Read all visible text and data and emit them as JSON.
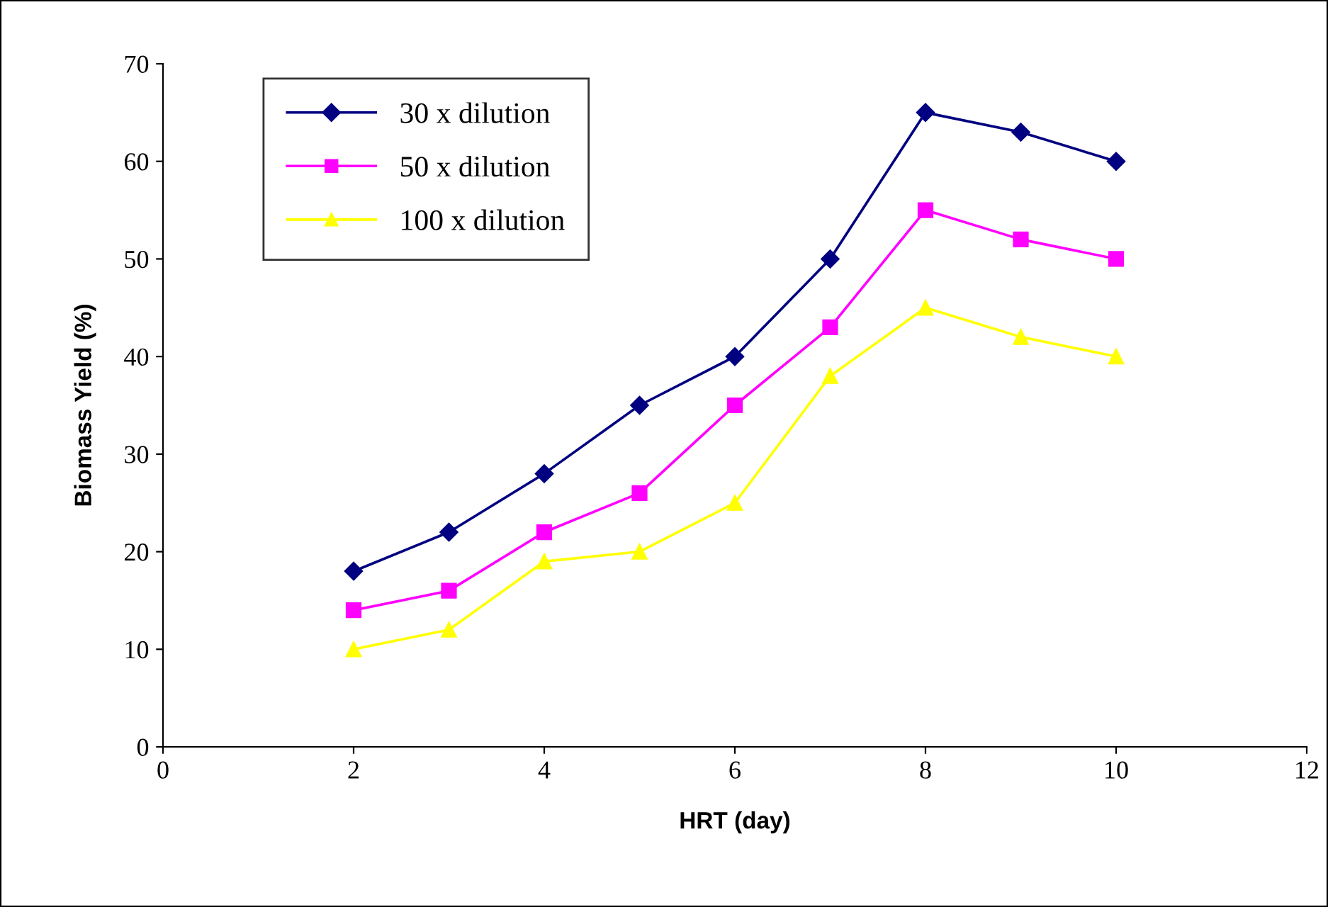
{
  "chart_data": {
    "type": "line",
    "xlabel": "HRT (day)",
    "ylabel": "Biomass Yield (%)",
    "x": [
      2,
      3,
      4,
      5,
      6,
      7,
      8,
      9,
      10
    ],
    "series": [
      {
        "name": "30 x dilution",
        "color": "#000080",
        "marker": "diamond",
        "values": [
          18,
          22,
          28,
          35,
          40,
          50,
          65,
          63,
          60
        ]
      },
      {
        "name": "50 x dilution",
        "color": "#ff00ff",
        "marker": "square",
        "values": [
          14,
          16,
          22,
          26,
          35,
          43,
          55,
          52,
          50
        ]
      },
      {
        "name": "100 x dilution",
        "color": "#ffff00",
        "marker": "triangle",
        "values": [
          10,
          12,
          19,
          20,
          25,
          38,
          45,
          42,
          40
        ]
      }
    ],
    "xlim": [
      0,
      12
    ],
    "xticks": [
      0,
      2,
      4,
      6,
      8,
      10,
      12
    ],
    "ylim": [
      0,
      70
    ],
    "yticks": [
      0,
      10,
      20,
      30,
      40,
      50,
      60,
      70
    ],
    "grid": false,
    "legend": "top left",
    "line_style": "solid"
  }
}
